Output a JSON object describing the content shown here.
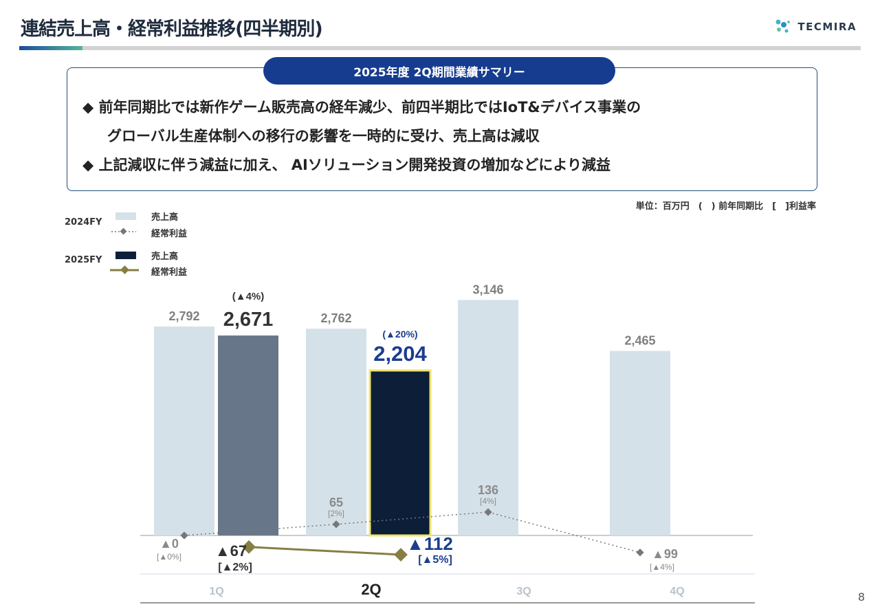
{
  "header": {
    "title": "連結売上高・経常利益推移(四半期別)",
    "logo_text": "TECMIRA"
  },
  "summary": {
    "heading": "2025年度 2Q期間業績サマリー",
    "bullet_marker": "◆",
    "bullets": [
      {
        "line1": "前年同期比では新作ゲーム販売高の経年減少、前四半期比ではIoT&デバイス事業の",
        "line2": "グローバル生産体制への移行の影響を一時的に受け、売上高は減収"
      },
      {
        "line1": "上記減収に伴う減益に加え、 AIソリューション開発投資の増加などにより減益"
      }
    ]
  },
  "unit_note": "単位：百万円　(　) 前年同期比　[　]利益率",
  "legend": {
    "fy2024": "2024FY",
    "fy2025": "2025FY",
    "sales": "売上高",
    "profit": "経常利益"
  },
  "page_number": "8",
  "chart_data": {
    "type": "bar",
    "categories": [
      "1Q",
      "2Q",
      "3Q",
      "4Q"
    ],
    "highlight_category": "2Q",
    "series": [
      {
        "name": "2024FY 売上高",
        "kind": "bar",
        "values": [
          2792,
          2762,
          3146,
          2465
        ],
        "labels": [
          "2,792",
          "2,762",
          "3,146",
          "2,465"
        ],
        "color": "#d5e1e9"
      },
      {
        "name": "2025FY 売上高",
        "kind": "bar",
        "values": [
          2671,
          2204,
          null,
          null
        ],
        "labels": [
          "2,671",
          "2,204",
          null,
          null
        ],
        "yoy": [
          "(▲4%)",
          "(▲20%)",
          null,
          null
        ],
        "colors": [
          "#687689",
          "#0c1e38"
        ],
        "highlight_border": "#f0e36a"
      },
      {
        "name": "2024FY 経常利益",
        "kind": "line",
        "style": "dotted",
        "values": [
          0,
          65,
          136,
          -99
        ],
        "labels": [
          "▲0",
          "65",
          "136",
          "▲99"
        ],
        "margins": [
          "[▲0%]",
          "[2%]",
          "[4%]",
          "[▲4%]"
        ],
        "color": "#777777"
      },
      {
        "name": "2025FY 経常利益",
        "kind": "line",
        "style": "solid",
        "values": [
          -67,
          -112,
          null,
          null
        ],
        "labels": [
          "▲67",
          "▲112"
        ],
        "margins": [
          "[▲2%]",
          "[▲5%]"
        ],
        "color": "#857f44"
      }
    ],
    "colors": {
      "accent_blue": "#1a3d8f"
    }
  }
}
